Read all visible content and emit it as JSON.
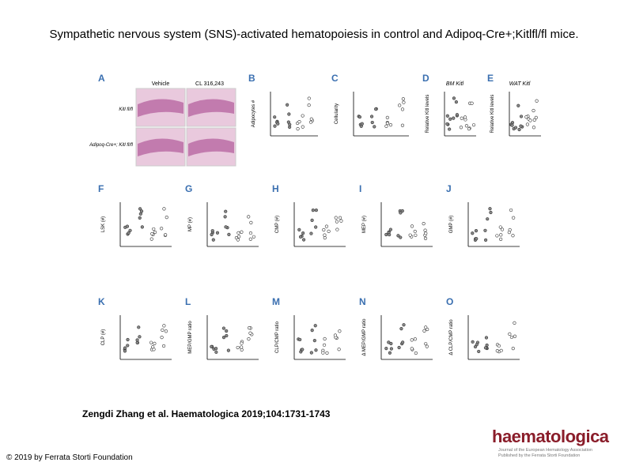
{
  "header": {
    "title": "Sympathetic nervous system (SNS)-activated hematopoiesis in control and Adipoq-Cre+;Kitlfl/fl mice."
  },
  "figure": {
    "panel_a": {
      "letter": "A",
      "columns": [
        "Vehicle",
        "CL 316,243"
      ],
      "rows": [
        "Kitl fl/fl",
        "Adipoq-Cre+; Kitl fl/fl"
      ]
    },
    "panels": [
      {
        "letter": "B",
        "ylabel": "Adipocytes #"
      },
      {
        "letter": "C",
        "ylabel": "Cellularity"
      },
      {
        "letter": "D",
        "title": "BM Kitl",
        "ylabel": "Relative Kitl levels"
      },
      {
        "letter": "E",
        "title": "WAT Kitl",
        "ylabel": "Relative Kitl levels"
      },
      {
        "letter": "F",
        "ylabel": "LSK (#)"
      },
      {
        "letter": "G",
        "ylabel": "MP (#)"
      },
      {
        "letter": "H",
        "ylabel": "CMP (#)"
      },
      {
        "letter": "I",
        "ylabel": "MEP (#)"
      },
      {
        "letter": "J",
        "ylabel": "GMP (#)"
      },
      {
        "letter": "K",
        "ylabel": "CLP (#)"
      },
      {
        "letter": "L",
        "ylabel": "MEP/GMP ratio"
      },
      {
        "letter": "M",
        "ylabel": "CLP/CMP ratio"
      },
      {
        "letter": "N",
        "ylabel": "Δ MEP/GMP ratio"
      },
      {
        "letter": "O",
        "ylabel": "Δ CLP/CMP ratio"
      }
    ]
  },
  "citation": "Zengdi Zhang et al. Haematologica 2019;104:1731-1743",
  "copyright": "© 2019 by Ferrata Storti Foundation",
  "logo": {
    "name": "haematologica",
    "lines": [
      "Journal of the European Hematology Association",
      "Published by the Ferrata Storti Foundation"
    ]
  }
}
